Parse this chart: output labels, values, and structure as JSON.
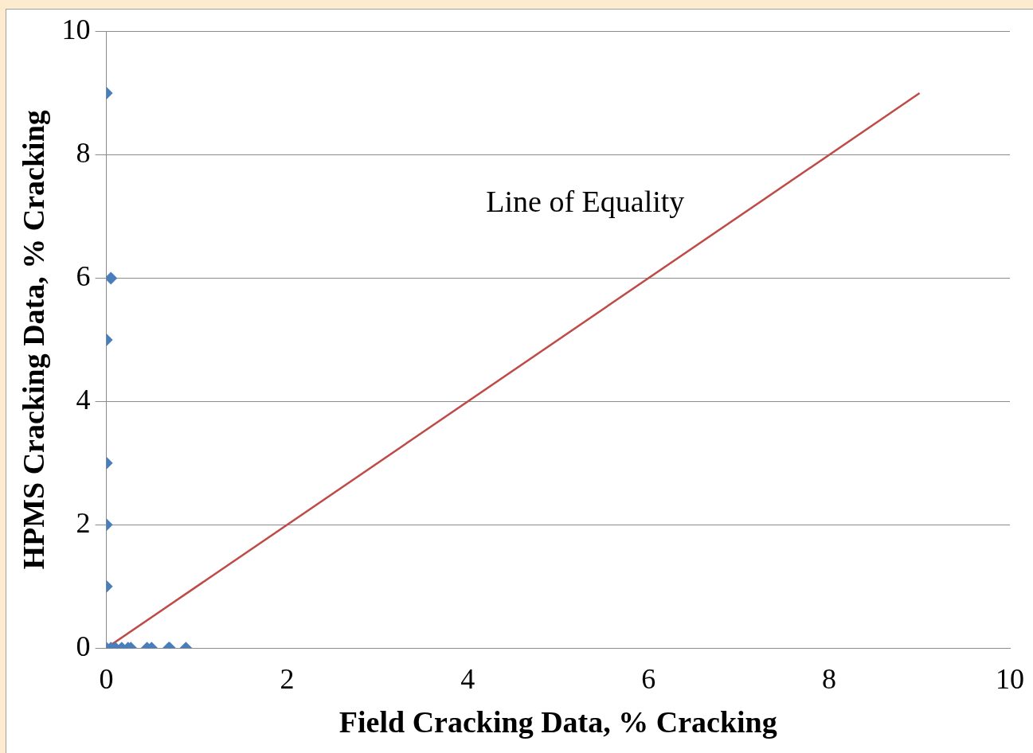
{
  "chart_data": {
    "type": "scatter",
    "xlabel": "Field Cracking Data, % Cracking",
    "ylabel": "HPMS Cracking Data, % Cracking",
    "xlim": [
      0,
      10
    ],
    "xticks": [
      0,
      2,
      4,
      6,
      8,
      10
    ],
    "ylim": [
      0,
      10
    ],
    "yticks": [
      0,
      2,
      4,
      6,
      8,
      10
    ],
    "grid": "y",
    "legend": false,
    "marker": "diamond",
    "series": [
      {
        "color": "#4a7ebb",
        "x": [
          0,
          0.05,
          0,
          0,
          0,
          0,
          0,
          0.05,
          0.1,
          0.17,
          0.24,
          0.27,
          0.45,
          0.5,
          0.69,
          0.7,
          0.88
        ],
        "values": [
          9,
          6,
          5,
          3,
          2,
          1,
          0,
          0,
          0,
          0,
          0,
          0,
          0,
          0,
          0,
          0,
          0
        ]
      },
      {
        "type": "line",
        "color": "#be4b48",
        "x": [
          0,
          9
        ],
        "values": [
          0,
          9
        ],
        "marker": "none",
        "line_style": "solid"
      }
    ],
    "annotations": [
      "Line of Equality"
    ]
  }
}
